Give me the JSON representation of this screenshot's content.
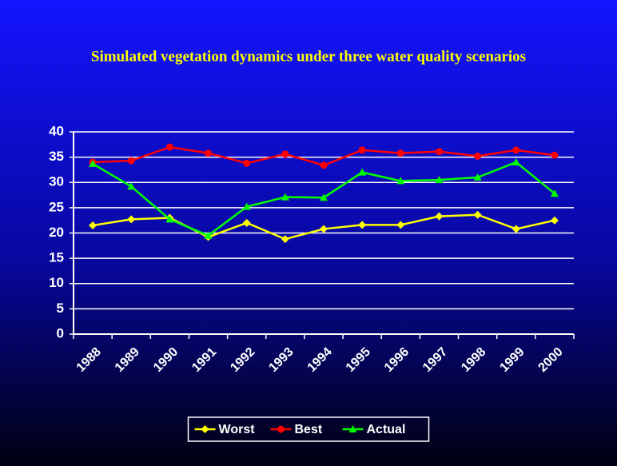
{
  "chart_data": {
    "type": "line",
    "title": "Simulated vegetation dynamics under three water quality scenarios",
    "categories": [
      "1988",
      "1989",
      "1990",
      "1991",
      "1992",
      "1993",
      "1994",
      "1995",
      "1996",
      "1997",
      "1998",
      "1999",
      "2000"
    ],
    "series": [
      {
        "name": "Worst",
        "color": "#ffff00",
        "marker": "diamond",
        "values": [
          21.5,
          22.7,
          23,
          19.2,
          22,
          18.8,
          20.8,
          21.6,
          21.6,
          23.3,
          23.6,
          20.8,
          22.5
        ]
      },
      {
        "name": "Best",
        "color": "#ff0000",
        "marker": "circle",
        "values": [
          34,
          34.3,
          37,
          35.8,
          33.8,
          35.6,
          33.4,
          36.4,
          35.8,
          36.1,
          35.2,
          36.4,
          35.4
        ]
      },
      {
        "name": "Actual",
        "color": "#00ff00",
        "marker": "triangle",
        "values": [
          33.7,
          29.2,
          22.7,
          19.5,
          25.2,
          27.1,
          27,
          32,
          30.3,
          30.5,
          31,
          34,
          27.8
        ]
      }
    ],
    "ylim": [
      0,
      40
    ],
    "yticks": [
      0,
      5,
      10,
      15,
      20,
      25,
      30,
      35,
      40
    ],
    "grid": true,
    "legend": "bottom"
  }
}
